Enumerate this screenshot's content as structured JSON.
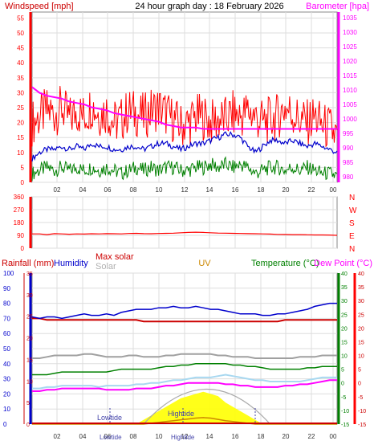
{
  "header": {
    "left_title": "Windspeed [mph]",
    "center_title": "24 hour graph day : 18 February 2026",
    "right_title": "Barometer [hpa]"
  },
  "colors": {
    "red": "#ff0000",
    "magenta": "#ff00ff",
    "blue": "#0000cc",
    "green": "#008000",
    "gray": "#a0a0a0",
    "orange": "#cc8800",
    "yellow": "#ffff00",
    "lightblue": "#a8d8f0",
    "darkred": "#cc0000",
    "tide": "#4444aa"
  },
  "chart_data": [
    {
      "type": "line",
      "title": "",
      "xlabel": "",
      "x_ticks": [
        "02",
        "04",
        "06",
        "08",
        "10",
        "12",
        "14",
        "16",
        "18",
        "20",
        "22",
        "00"
      ],
      "y_left_label": "Windspeed [mph]",
      "y_left_ticks": [
        0,
        5,
        10,
        15,
        20,
        25,
        30,
        35,
        40,
        45,
        50,
        55
      ],
      "y_left_range": [
        0,
        57
      ],
      "y_right_label": "Barometer [hpa]",
      "y_right_ticks": [
        980,
        985,
        990,
        995,
        1000,
        1005,
        1010,
        1015,
        1020,
        1025,
        1030,
        1035
      ],
      "y_right_range": [
        978,
        1037
      ],
      "grid": true,
      "series": [
        {
          "name": "Windspeed [mph]",
          "color": "#ff0000",
          "axis": "left",
          "values": [
            20,
            22,
            24,
            23,
            25,
            21,
            24,
            22,
            26,
            23,
            24,
            20,
            21,
            24,
            23,
            22,
            24,
            25,
            23,
            21,
            19,
            20,
            22,
            22,
            20,
            21,
            21,
            23,
            22,
            24,
            22,
            20,
            21,
            22,
            25,
            23,
            21,
            20,
            22,
            19,
            18,
            15
          ]
        },
        {
          "name": "Windspeed average",
          "color": "#0000cc",
          "axis": "left",
          "values": [
            8,
            10,
            11,
            11,
            12,
            11,
            12,
            11,
            13,
            12,
            12,
            11,
            11,
            12,
            12,
            11,
            12,
            13,
            13,
            12,
            11,
            12,
            13,
            13,
            14,
            15,
            16,
            16,
            15,
            12,
            10,
            12,
            14,
            14,
            13,
            14,
            13,
            12,
            13,
            12,
            11,
            10
          ]
        },
        {
          "name": "Wind lull",
          "color": "#008000",
          "axis": "left",
          "values": [
            3,
            4,
            5,
            4,
            5,
            4,
            5,
            4,
            5,
            4,
            5,
            4,
            3,
            4,
            5,
            4,
            5,
            4,
            5,
            5,
            4,
            4,
            5,
            5,
            6,
            5,
            6,
            5,
            6,
            5,
            3,
            4,
            5,
            5,
            4,
            5,
            4,
            5,
            4,
            3,
            3,
            2
          ]
        },
        {
          "name": "Barometer [hpa]",
          "color": "#ff00ff",
          "axis": "right",
          "values": [
            1011,
            1009,
            1008,
            1007.5,
            1007,
            1006,
            1005.5,
            1005,
            1004,
            1003.5,
            1003,
            1002,
            1001.5,
            1001,
            1000.5,
            1000,
            999.5,
            999,
            998,
            997.5,
            997,
            997,
            997,
            996.5,
            996.5,
            996.5,
            996.5,
            996.5,
            996.5,
            996.5,
            996.5,
            996.5,
            996.5,
            996.5,
            996.5,
            996.5,
            996.5,
            996.5,
            996.5,
            996.5,
            996.5,
            996.5
          ]
        }
      ]
    },
    {
      "type": "line",
      "title": "",
      "xlabel": "",
      "y_left_label": "",
      "y_left_ticks": [
        0,
        90,
        180,
        270,
        360
      ],
      "y_left_range": [
        0,
        360
      ],
      "compass_labels": [
        "N",
        "W",
        "S",
        "E",
        "N"
      ],
      "grid": true,
      "series": [
        {
          "name": "Wind direction",
          "color": "#ff0000",
          "values": [
            100,
            100,
            95,
            102,
            100,
            98,
            100,
            99,
            101,
            100,
            102,
            101,
            100,
            103,
            104,
            102,
            101,
            103,
            104,
            105,
            108,
            110,
            112,
            110,
            108,
            106,
            105,
            104,
            103,
            102,
            101,
            100,
            99,
            97,
            96,
            95,
            95,
            94,
            93,
            93,
            92,
            90
          ]
        }
      ]
    },
    {
      "type": "line",
      "title": "",
      "xlabel": "",
      "x_ticks": [
        "02",
        "04",
        "06",
        "08",
        "10",
        "12",
        "14",
        "16",
        "18",
        "20",
        "22",
        "00"
      ],
      "y_left_ticks": [
        0,
        10,
        20,
        30,
        40,
        50,
        60,
        70,
        80,
        90,
        100
      ],
      "y_left2_ticks": [
        0,
        5,
        10,
        15,
        20,
        25,
        30,
        35
      ],
      "y_right_ticks": [
        -15,
        -10,
        -5,
        0,
        5,
        10,
        15,
        20,
        25,
        30,
        35,
        40
      ],
      "y_right2_ticks": [
        -15,
        -10,
        -5,
        0,
        5,
        10,
        15,
        20,
        25,
        30,
        35,
        40
      ],
      "legend": [
        "Rainfall (mm)",
        "Humidity",
        "Max solar",
        "Solar",
        "UV",
        "Temperature (°C)",
        "Dew Point (°C)"
      ],
      "tide_labels": [
        "Lowtide",
        "Lowtide",
        "Hightide",
        "Hightide"
      ],
      "grid": true,
      "series": [
        {
          "name": "Humidity",
          "color": "#0000cc",
          "axis": "humidity",
          "values": [
            71,
            70,
            71,
            71,
            70,
            71,
            72,
            73,
            72,
            72,
            73,
            72,
            74,
            75,
            76,
            76,
            76,
            77,
            77,
            78,
            77,
            77,
            78,
            77,
            76,
            76,
            75,
            74,
            73,
            73,
            73,
            72,
            72,
            73,
            73,
            74,
            75,
            76,
            78,
            79,
            80,
            80
          ]
        },
        {
          "name": "Rainfall (mm)",
          "color": "#cc0000",
          "axis": "humidity",
          "values": [
            70,
            70,
            69,
            69,
            69,
            69,
            69,
            69,
            69,
            69,
            69,
            69,
            69,
            69,
            69,
            68,
            68,
            68,
            68,
            68,
            68,
            68,
            68,
            68,
            68,
            68,
            68,
            68,
            68,
            68,
            68,
            68,
            68,
            68,
            69,
            69,
            69,
            69,
            69,
            69,
            69,
            69
          ]
        },
        {
          "name": "Temperature (°C)",
          "color": "#008000",
          "axis": "temp",
          "values": [
            3,
            3,
            3,
            3.5,
            4,
            4,
            4,
            4,
            4,
            4,
            4,
            4.5,
            5,
            5,
            5,
            5,
            5,
            5.5,
            6,
            6,
            6.5,
            6.5,
            7,
            7,
            7,
            7,
            7,
            6.5,
            6.5,
            6,
            6,
            5.5,
            5,
            5,
            5,
            5,
            5,
            5.5,
            5.5,
            6,
            6,
            6
          ]
        },
        {
          "name": "Dew Point (°C)",
          "color": "#ff00ff",
          "axis": "temp",
          "values": [
            -3,
            -3,
            -2.5,
            -2.5,
            -2,
            -2,
            -2,
            -2,
            -2,
            -2,
            -2.5,
            -2.5,
            -2.5,
            -2.5,
            -2,
            -2,
            -2,
            -1.5,
            -1,
            -1,
            -0.5,
            0,
            0,
            0,
            0,
            0,
            -0.5,
            -0.5,
            -1,
            -1,
            -1.5,
            -1.5,
            -1.5,
            -1.5,
            -1,
            -1,
            -0.5,
            -0.5,
            0,
            0.5,
            1,
            1
          ]
        },
        {
          "name": "Max solar",
          "color": "#a0a0a0",
          "axis": "temp",
          "values": [
            9,
            9,
            9.5,
            10,
            10,
            10,
            10,
            10.5,
            10.5,
            10,
            9.5,
            9.5,
            9.5,
            10,
            10,
            9.5,
            9.5,
            9.5,
            10,
            10,
            10.5,
            10.5,
            10.5,
            10.5,
            10.5,
            10,
            10,
            9.5,
            9.5,
            9.5,
            9,
            9,
            9,
            9,
            9,
            9,
            9.5,
            9.5,
            9.5,
            10,
            10,
            10
          ]
        },
        {
          "name": "Solar",
          "color": "#a8d8f0",
          "axis": "temp",
          "values": [
            -2,
            -2,
            -1.5,
            -1.5,
            -1,
            -1,
            -1,
            -1,
            -1,
            -1.5,
            -1,
            -1,
            -1,
            -1,
            -0.5,
            -0.5,
            0,
            0,
            0.5,
            1,
            1,
            1.5,
            2,
            2,
            2,
            2.5,
            3,
            2.5,
            2,
            1.5,
            1,
            1,
            0.5,
            0.5,
            0.5,
            0.5,
            0.5,
            1,
            1.5,
            2,
            2,
            2
          ]
        },
        {
          "name": "Solar radiation",
          "color": "#ffff00",
          "axis": "solar",
          "values": [
            0,
            0,
            0,
            0,
            0,
            0,
            0,
            0,
            0,
            0,
            0,
            0,
            0,
            0,
            0,
            1,
            2,
            3,
            4,
            5,
            6,
            6.5,
            7,
            7.5,
            7,
            6.5,
            5,
            4,
            3,
            2,
            1,
            0,
            0,
            0,
            0,
            0,
            0,
            0,
            0,
            0,
            0,
            0
          ]
        },
        {
          "name": "UV",
          "color": "#cc8800",
          "axis": "solar",
          "values": [
            0,
            0,
            0,
            0,
            0,
            0,
            0,
            0,
            0,
            0,
            0,
            0,
            0,
            0,
            0,
            0,
            0.2,
            0.4,
            0.6,
            0.8,
            1,
            1.2,
            1.4,
            1.5,
            1.4,
            1.1,
            0.8,
            0.6,
            0.4,
            0.2,
            0,
            0,
            0,
            0,
            0,
            0,
            0,
            0,
            0,
            0,
            0,
            0
          ]
        }
      ]
    }
  ],
  "panel3": {
    "rainfall_label": "Rainfall (mm)",
    "humidity_label": "Humidity",
    "max_solar_label": "Max solar",
    "solar_label": "Solar",
    "uv_label": "UV",
    "temperature_label": "Temperature (°C)",
    "dewpoint_label": "Dew Point (°C)",
    "lowtide_label": "Lowtide",
    "hightide_label": "Hightide",
    "lowtide_bottom": "Lowtide",
    "hightide_bottom": "Hightide"
  },
  "panel2": {
    "compass": [
      "N",
      "W",
      "S",
      "E",
      "N"
    ]
  }
}
